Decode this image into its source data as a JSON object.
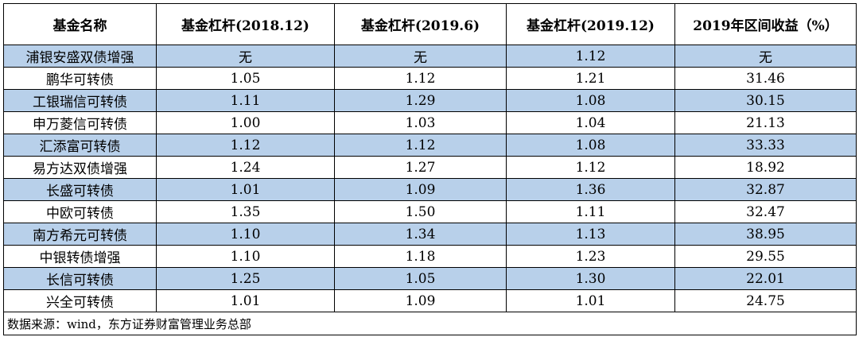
{
  "table": {
    "header": [
      "基金名称",
      "基金杠杆(2018.12)",
      "基金杠杆(2019.6)",
      "基金杠杆(2019.12)",
      "2019年区间收益（%）"
    ],
    "rows": [
      [
        "浦银安盛双债增强",
        "无",
        "无",
        "1.12",
        "无"
      ],
      [
        "鹏华可转债",
        "1.05",
        "1.12",
        "1.21",
        "31.46"
      ],
      [
        "工银瑞信可转债",
        "1.11",
        "1.29",
        "1.08",
        "30.15"
      ],
      [
        "申万菱信可转债",
        "1.00",
        "1.03",
        "1.04",
        "21.13"
      ],
      [
        "汇添富可转债",
        "1.12",
        "1.12",
        "1.08",
        "33.33"
      ],
      [
        "易方达双债增强",
        "1.24",
        "1.27",
        "1.12",
        "18.92"
      ],
      [
        "长盛可转债",
        "1.01",
        "1.09",
        "1.36",
        "32.87"
      ],
      [
        "中欧可转债",
        "1.35",
        "1.50",
        "1.11",
        "32.47"
      ],
      [
        "南方希元可转债",
        "1.10",
        "1.34",
        "1.13",
        "38.95"
      ],
      [
        "中银转债增强",
        "1.10",
        "1.18",
        "1.23",
        "29.55"
      ],
      [
        "长信可转债",
        "1.25",
        "1.05",
        "1.30",
        "22.01"
      ],
      [
        "兴全可转债",
        "1.01",
        "1.09",
        "1.01",
        "24.75"
      ]
    ],
    "source": "数据来源：wind，东方证券财富管理业务总部"
  }
}
